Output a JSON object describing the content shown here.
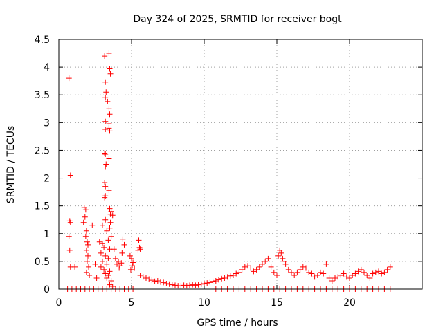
{
  "chart_data": {
    "type": "scatter",
    "title": "Day 324 of 2025, SRMTID for receiver bogt",
    "xlabel": "GPS time / hours",
    "ylabel": "SRMTID / TECUs",
    "xlim": [
      0,
      25
    ],
    "ylim": [
      0,
      4.5
    ],
    "xticks": [
      0,
      5,
      10,
      15,
      20
    ],
    "xtick_labels": [
      "0",
      "5",
      "10",
      "15",
      "20"
    ],
    "yticks": [
      0,
      0.5,
      1,
      1.5,
      2,
      2.5,
      3,
      3.5,
      4,
      4.5
    ],
    "ytick_labels": [
      "0",
      "0.5",
      "1",
      "1.5",
      "2",
      "2.5",
      "3",
      "3.5",
      "4",
      "4.5"
    ],
    "grid": true,
    "marker": "+",
    "series": [
      {
        "name": "SRMTID",
        "color": "#ff0000",
        "points": [
          [
            0.7,
            3.8
          ],
          [
            0.8,
            2.05
          ],
          [
            0.75,
            1.23
          ],
          [
            0.8,
            1.2
          ],
          [
            0.7,
            0.95
          ],
          [
            0.75,
            0.7
          ],
          [
            0.8,
            0.4
          ],
          [
            1.1,
            0.4
          ],
          [
            0.6,
            0.0
          ],
          [
            0.9,
            0.0
          ],
          [
            1.2,
            0.0
          ],
          [
            1.5,
            0.0
          ],
          [
            1.75,
            1.47
          ],
          [
            1.85,
            1.43
          ],
          [
            1.8,
            1.3
          ],
          [
            1.7,
            1.2
          ],
          [
            1.9,
            1.05
          ],
          [
            1.85,
            0.95
          ],
          [
            1.95,
            0.85
          ],
          [
            2.0,
            0.8
          ],
          [
            1.9,
            0.7
          ],
          [
            2.0,
            0.6
          ],
          [
            1.95,
            0.5
          ],
          [
            2.05,
            0.4
          ],
          [
            1.9,
            0.3
          ],
          [
            2.1,
            0.25
          ],
          [
            1.8,
            0.0
          ],
          [
            2.1,
            0.0
          ],
          [
            2.3,
            1.15
          ],
          [
            2.5,
            0.45
          ],
          [
            2.6,
            0.2
          ],
          [
            2.4,
            0.0
          ],
          [
            2.7,
            0.0
          ],
          [
            3.15,
            4.2
          ],
          [
            3.45,
            4.25
          ],
          [
            3.2,
            3.73
          ],
          [
            3.5,
            3.97
          ],
          [
            3.55,
            3.88
          ],
          [
            3.25,
            3.55
          ],
          [
            3.2,
            3.45
          ],
          [
            3.35,
            3.38
          ],
          [
            3.45,
            3.25
          ],
          [
            3.5,
            3.15
          ],
          [
            3.2,
            3.02
          ],
          [
            3.45,
            2.98
          ],
          [
            3.45,
            2.9
          ],
          [
            3.2,
            2.88
          ],
          [
            3.5,
            2.85
          ],
          [
            3.15,
            2.45
          ],
          [
            3.2,
            2.43
          ],
          [
            3.45,
            2.35
          ],
          [
            3.25,
            2.25
          ],
          [
            3.2,
            2.2
          ],
          [
            3.15,
            1.92
          ],
          [
            3.2,
            1.85
          ],
          [
            3.45,
            1.78
          ],
          [
            3.2,
            1.68
          ],
          [
            3.15,
            1.65
          ],
          [
            3.5,
            1.45
          ],
          [
            3.6,
            1.4
          ],
          [
            3.55,
            1.35
          ],
          [
            3.7,
            1.33
          ],
          [
            3.2,
            1.25
          ],
          [
            3.55,
            1.2
          ],
          [
            3.5,
            1.1
          ],
          [
            3.0,
            1.15
          ],
          [
            3.3,
            1.05
          ],
          [
            3.6,
            0.95
          ],
          [
            3.4,
            0.88
          ],
          [
            2.8,
            0.85
          ],
          [
            3.0,
            0.82
          ],
          [
            3.1,
            0.75
          ],
          [
            3.5,
            0.72
          ],
          [
            2.9,
            0.65
          ],
          [
            3.2,
            0.6
          ],
          [
            3.4,
            0.55
          ],
          [
            3.0,
            0.5
          ],
          [
            3.3,
            0.45
          ],
          [
            2.9,
            0.4
          ],
          [
            3.1,
            0.35
          ],
          [
            3.5,
            0.32
          ],
          [
            3.2,
            0.28
          ],
          [
            3.4,
            0.25
          ],
          [
            3.3,
            0.2
          ],
          [
            3.6,
            0.15
          ],
          [
            3.5,
            0.08
          ],
          [
            3.7,
            0.05
          ],
          [
            3.0,
            0.0
          ],
          [
            3.3,
            0.0
          ],
          [
            3.6,
            0.0
          ],
          [
            3.8,
            0.72
          ],
          [
            3.9,
            0.55
          ],
          [
            4.0,
            0.45
          ],
          [
            4.1,
            0.5
          ],
          [
            4.2,
            0.42
          ],
          [
            4.3,
            0.47
          ],
          [
            4.4,
            0.9
          ],
          [
            4.5,
            0.8
          ],
          [
            4.35,
            0.65
          ],
          [
            4.15,
            0.38
          ],
          [
            3.9,
            0.0
          ],
          [
            4.2,
            0.0
          ],
          [
            4.5,
            0.0
          ],
          [
            4.8,
            0.0
          ],
          [
            5.1,
            0.0
          ],
          [
            4.9,
            0.6
          ],
          [
            5.0,
            0.55
          ],
          [
            5.1,
            0.48
          ],
          [
            5.05,
            0.42
          ],
          [
            4.95,
            0.35
          ],
          [
            5.2,
            0.38
          ],
          [
            5.5,
            0.88
          ],
          [
            5.55,
            0.75
          ],
          [
            5.45,
            0.7
          ],
          [
            5.6,
            0.72
          ],
          [
            5.6,
            0.25
          ],
          [
            5.8,
            0.22
          ],
          [
            6.0,
            0.2
          ],
          [
            6.2,
            0.18
          ],
          [
            6.4,
            0.16
          ],
          [
            6.6,
            0.14
          ],
          [
            6.8,
            0.15
          ],
          [
            7.0,
            0.13
          ],
          [
            7.2,
            0.12
          ],
          [
            7.4,
            0.1
          ],
          [
            7.6,
            0.09
          ],
          [
            7.8,
            0.08
          ],
          [
            8.0,
            0.07
          ],
          [
            8.2,
            0.06
          ],
          [
            8.4,
            0.06
          ],
          [
            8.6,
            0.07
          ],
          [
            8.8,
            0.06
          ],
          [
            9.0,
            0.07
          ],
          [
            9.2,
            0.08
          ],
          [
            9.4,
            0.07
          ],
          [
            9.6,
            0.08
          ],
          [
            9.8,
            0.09
          ],
          [
            10.0,
            0.1
          ],
          [
            10.2,
            0.11
          ],
          [
            10.4,
            0.12
          ],
          [
            10.6,
            0.14
          ],
          [
            10.8,
            0.15
          ],
          [
            11.0,
            0.17
          ],
          [
            11.2,
            0.19
          ],
          [
            11.4,
            0.2
          ],
          [
            11.6,
            0.22
          ],
          [
            11.8,
            0.24
          ],
          [
            12.0,
            0.25
          ],
          [
            12.2,
            0.28
          ],
          [
            12.4,
            0.3
          ],
          [
            12.6,
            0.35
          ],
          [
            12.8,
            0.4
          ],
          [
            13.0,
            0.42
          ],
          [
            13.2,
            0.38
          ],
          [
            13.4,
            0.32
          ],
          [
            13.6,
            0.35
          ],
          [
            13.8,
            0.4
          ],
          [
            14.0,
            0.45
          ],
          [
            14.2,
            0.5
          ],
          [
            14.4,
            0.55
          ],
          [
            14.6,
            0.4
          ],
          [
            14.8,
            0.3
          ],
          [
            15.0,
            0.25
          ],
          [
            15.1,
            0.6
          ],
          [
            15.2,
            0.7
          ],
          [
            15.3,
            0.65
          ],
          [
            15.4,
            0.55
          ],
          [
            15.5,
            0.5
          ],
          [
            15.6,
            0.45
          ],
          [
            15.8,
            0.35
          ],
          [
            16.0,
            0.3
          ],
          [
            16.2,
            0.25
          ],
          [
            16.4,
            0.3
          ],
          [
            16.6,
            0.35
          ],
          [
            16.8,
            0.4
          ],
          [
            17.0,
            0.38
          ],
          [
            17.2,
            0.3
          ],
          [
            17.4,
            0.28
          ],
          [
            17.6,
            0.22
          ],
          [
            17.8,
            0.25
          ],
          [
            18.0,
            0.3
          ],
          [
            18.2,
            0.28
          ],
          [
            18.4,
            0.45
          ],
          [
            18.6,
            0.2
          ],
          [
            18.8,
            0.15
          ],
          [
            19.0,
            0.2
          ],
          [
            19.2,
            0.22
          ],
          [
            19.4,
            0.25
          ],
          [
            19.6,
            0.28
          ],
          [
            19.8,
            0.22
          ],
          [
            20.0,
            0.2
          ],
          [
            20.2,
            0.25
          ],
          [
            20.4,
            0.28
          ],
          [
            20.6,
            0.32
          ],
          [
            20.8,
            0.35
          ],
          [
            21.0,
            0.3
          ],
          [
            21.2,
            0.25
          ],
          [
            21.4,
            0.2
          ],
          [
            21.6,
            0.28
          ],
          [
            21.8,
            0.3
          ],
          [
            22.0,
            0.32
          ],
          [
            22.2,
            0.28
          ],
          [
            22.4,
            0.3
          ],
          [
            22.6,
            0.35
          ],
          [
            22.8,
            0.4
          ],
          [
            10.8,
            0.0
          ],
          [
            11.2,
            0.0
          ],
          [
            11.6,
            0.0
          ],
          [
            12.0,
            0.0
          ],
          [
            12.4,
            0.0
          ],
          [
            12.8,
            0.0
          ],
          [
            13.2,
            0.0
          ],
          [
            13.6,
            0.0
          ],
          [
            14.0,
            0.0
          ],
          [
            14.4,
            0.0
          ],
          [
            14.8,
            0.0
          ],
          [
            15.2,
            0.0
          ],
          [
            15.6,
            0.0
          ],
          [
            16.0,
            0.0
          ],
          [
            16.4,
            0.0
          ],
          [
            16.8,
            0.0
          ],
          [
            17.2,
            0.0
          ],
          [
            17.6,
            0.0
          ],
          [
            18.0,
            0.0
          ],
          [
            18.4,
            0.0
          ],
          [
            18.8,
            0.0
          ],
          [
            19.2,
            0.0
          ],
          [
            19.6,
            0.0
          ],
          [
            20.0,
            0.0
          ],
          [
            20.4,
            0.0
          ],
          [
            20.8,
            0.0
          ],
          [
            21.2,
            0.0
          ],
          [
            21.6,
            0.0
          ],
          [
            22.0,
            0.0
          ],
          [
            22.4,
            0.0
          ],
          [
            22.8,
            0.0
          ]
        ]
      }
    ]
  }
}
